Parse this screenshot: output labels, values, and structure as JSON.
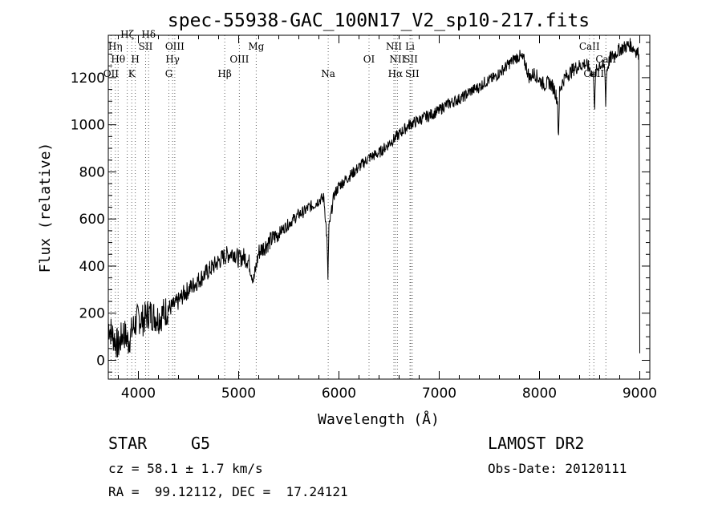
{
  "chart_data": {
    "type": "line",
    "title": "spec-55938-GAC_100N17_V2_sp10-217.fits",
    "xlabel": "Wavelength (Å)",
    "ylabel": "Flux (relative)",
    "xlim": [
      3700,
      9100
    ],
    "ylim": [
      -80,
      1380
    ],
    "xticks": [
      4000,
      5000,
      6000,
      7000,
      8000,
      9000
    ],
    "yticks": [
      0,
      200,
      400,
      600,
      800,
      1000,
      1200
    ],
    "grid": false,
    "series": [
      {
        "x": [
          3700,
          3750,
          3800,
          3850,
          3900,
          3950,
          4000,
          4050,
          4100,
          4150,
          4200,
          4250,
          4300,
          4350,
          4400,
          4450,
          4500,
          4550,
          4600,
          4650,
          4700,
          4750,
          4800,
          4850,
          4900,
          4950,
          5000,
          5050,
          5100,
          5150,
          5200,
          5250,
          5300,
          5350,
          5400,
          5450,
          5500,
          5550,
          5600,
          5650,
          5700,
          5750,
          5800,
          5850,
          5880,
          5890,
          5900,
          5950,
          6000,
          6050,
          6100,
          6150,
          6200,
          6250,
          6300,
          6350,
          6400,
          6450,
          6500,
          6550,
          6600,
          6650,
          6700,
          6750,
          6800,
          6850,
          6900,
          6950,
          7000,
          7050,
          7100,
          7150,
          7200,
          7250,
          7300,
          7350,
          7400,
          7450,
          7500,
          7550,
          7600,
          7650,
          7700,
          7750,
          7800,
          7850,
          7900,
          7950,
          8000,
          8050,
          8100,
          8150,
          8180,
          8190,
          8200,
          8250,
          8300,
          8350,
          8400,
          8450,
          8500,
          8540,
          8550,
          8560,
          8600,
          8650,
          8660,
          8670,
          8700,
          8750,
          8800,
          8850,
          8900,
          8950,
          8990,
          9000
        ],
        "y": [
          150,
          100,
          60,
          120,
          80,
          140,
          180,
          170,
          200,
          190,
          180,
          200,
          220,
          230,
          250,
          280,
          300,
          320,
          340,
          360,
          380,
          400,
          420,
          440,
          450,
          460,
          430,
          440,
          420,
          340,
          460,
          480,
          500,
          520,
          540,
          560,
          580,
          600,
          620,
          630,
          650,
          660,
          680,
          690,
          520,
          350,
          560,
          700,
          740,
          760,
          780,
          800,
          820,
          840,
          860,
          870,
          880,
          900,
          920,
          940,
          960,
          980,
          1000,
          1010,
          1020,
          1030,
          1040,
          1050,
          1060,
          1080,
          1090,
          1100,
          1110,
          1120,
          1140,
          1150,
          1160,
          1180,
          1190,
          1200,
          1220,
          1240,
          1260,
          1280,
          1290,
          1270,
          1200,
          1220,
          1190,
          1170,
          1180,
          1150,
          1100,
          930,
          1150,
          1200,
          1220,
          1240,
          1250,
          1260,
          1240,
          1200,
          1070,
          1220,
          1260,
          1240,
          1100,
          1230,
          1280,
          1300,
          1320,
          1330,
          1340,
          1320,
          1300,
          30
        ]
      }
    ],
    "line_markers": [
      {
        "wave": 3727,
        "label": "OII",
        "tier": 3
      },
      {
        "wave": 3770,
        "label": "Hη",
        "tier": 1
      },
      {
        "wave": 3798,
        "label": "Hθ",
        "tier": 2
      },
      {
        "wave": 3889,
        "label": "Hζ",
        "tier": 0
      },
      {
        "wave": 3934,
        "label": "K",
        "tier": 3
      },
      {
        "wave": 3969,
        "label": "H",
        "tier": 2
      },
      {
        "wave": 4072,
        "label": "SII",
        "tier": 1
      },
      {
        "wave": 4102,
        "label": "Hδ",
        "tier": 0
      },
      {
        "wave": 4304,
        "label": "G",
        "tier": 3
      },
      {
        "wave": 4341,
        "label": "Hγ",
        "tier": 2
      },
      {
        "wave": 4363,
        "label": "OIII",
        "tier": 1
      },
      {
        "wave": 4861,
        "label": "Hβ",
        "tier": 3
      },
      {
        "wave": 5007,
        "label": "OIII",
        "tier": 2
      },
      {
        "wave": 5175,
        "label": "Mg",
        "tier": 1
      },
      {
        "wave": 5893,
        "label": "Na",
        "tier": 3
      },
      {
        "wave": 6300,
        "label": "OI",
        "tier": 2
      },
      {
        "wave": 6548,
        "label": "NII",
        "tier": 1
      },
      {
        "wave": 6563,
        "label": "Hα",
        "tier": 3
      },
      {
        "wave": 6583,
        "label": "NII",
        "tier": 2
      },
      {
        "wave": 6708,
        "label": "Li",
        "tier": 1
      },
      {
        "wave": 6716,
        "label": "SII",
        "tier": 2
      },
      {
        "wave": 6731,
        "label": "SII",
        "tier": 3
      },
      {
        "wave": 8498,
        "label": "CaII",
        "tier": 1
      },
      {
        "wave": 8542,
        "label": "CaII",
        "tier": 3
      },
      {
        "wave": 8662,
        "label": "CaII",
        "tier": 2
      }
    ]
  },
  "footer": {
    "class_type": "STAR",
    "subclass": "G5",
    "survey": "LAMOST DR2",
    "cz": "cz = 58.1 ± 1.7 km/s",
    "obs_date": "Obs-Date: 20120111",
    "coords": "RA =  99.12112, DEC =  17.24121"
  }
}
